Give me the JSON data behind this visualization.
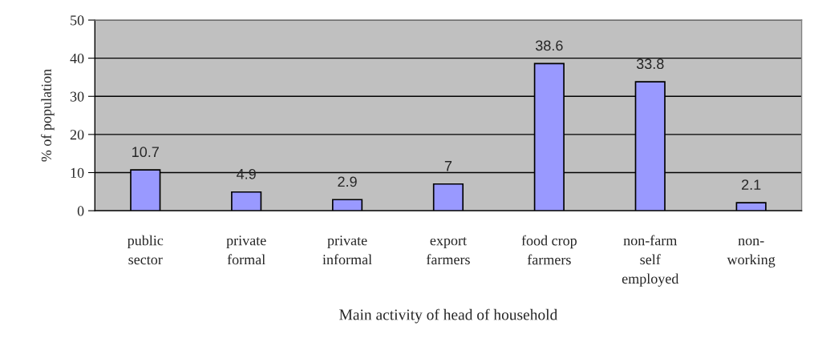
{
  "chart_data": {
    "type": "bar",
    "xlabel": "Main activity of head of household",
    "ylabel": "% of population",
    "categories": [
      "public\nsector",
      "private\nformal",
      "private\ninformal",
      "export\nfarmers",
      "food crop\nfarmers",
      "non-farm\nself\nemployed",
      "non-\nworking"
    ],
    "values": [
      10.7,
      4.9,
      2.9,
      7,
      38.6,
      33.8,
      2.1
    ],
    "color": "#9999ff",
    "ylim": [
      0,
      50
    ],
    "yticks": [
      0,
      10,
      20,
      30,
      40,
      50
    ],
    "grid": "y",
    "data_labels": true,
    "legend": false
  }
}
